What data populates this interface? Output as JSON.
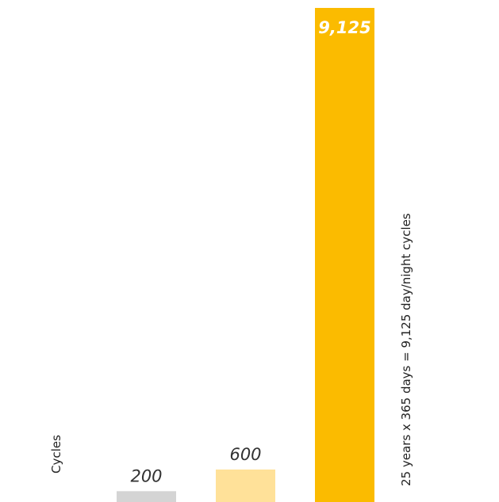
{
  "chart_data": {
    "type": "bar",
    "title": "",
    "xlabel": "",
    "ylabel": "Cycles",
    "categories": [
      "",
      "",
      ""
    ],
    "values": [
      200,
      600,
      9125
    ],
    "value_labels": [
      "200",
      "600",
      "9,125"
    ],
    "colors": [
      "#d4d4d4",
      "#ffe199",
      "#fbbb00"
    ],
    "ylim": [
      0,
      9125
    ],
    "grid": false,
    "legend": "none",
    "annotation": "25 years x 365 days = 9,125 day/night cycles"
  }
}
